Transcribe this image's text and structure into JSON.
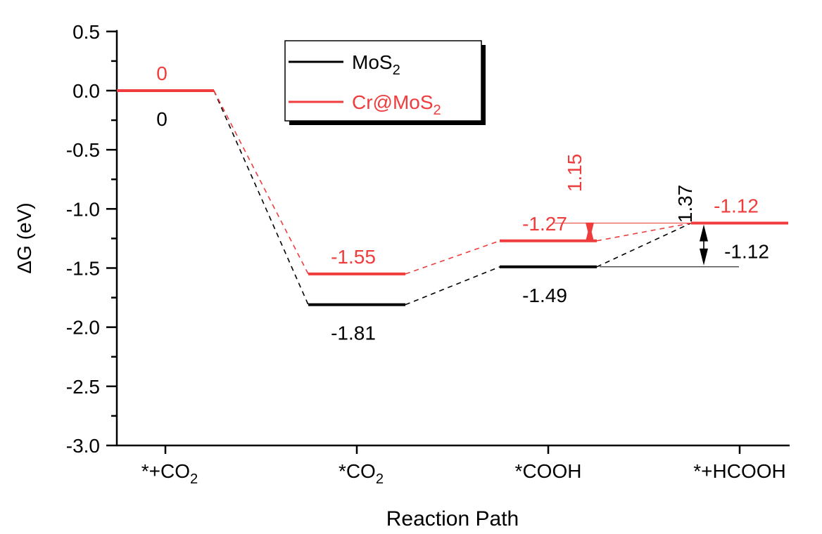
{
  "chart_data": {
    "type": "line",
    "title": "",
    "xlabel": "Reaction Path",
    "ylabel": "ΔG (eV)",
    "ylim": [
      -3.0,
      0.5
    ],
    "yticks": [
      "0.5",
      "0.0",
      "-0.5",
      "-1.0",
      "-1.5",
      "-2.0",
      "-2.5",
      "-3.0"
    ],
    "ytick_values": [
      0.5,
      0.0,
      -0.5,
      -1.0,
      -1.5,
      -2.0,
      -2.5,
      -3.0
    ],
    "categories": [
      {
        "text": "*+CO",
        "sub": "2"
      },
      {
        "text": "*CO",
        "sub": "2"
      },
      {
        "text": "*COOH",
        "sub": ""
      },
      {
        "text": "*+HCOOH",
        "sub": ""
      }
    ],
    "series": [
      {
        "name": "MoS",
        "name_sub": "2",
        "color": "#000000",
        "values": [
          0,
          -1.81,
          -1.49,
          -1.12
        ],
        "labels": [
          "0",
          "-1.81",
          "-1.49",
          "-1.12"
        ],
        "label_pos": "below"
      },
      {
        "name": "Cr@MoS",
        "name_sub": "2",
        "color": "#f03c3c",
        "values": [
          0,
          -1.55,
          -1.27,
          -1.12
        ],
        "labels": [
          "0",
          "-1.55",
          "-1.27",
          "-1.12"
        ],
        "label_pos": "above"
      }
    ],
    "annotations": [
      {
        "text": "1.15",
        "color": "#f03c3c",
        "from": -1.12,
        "to": -1.27
      },
      {
        "text": "1.37",
        "color": "#000000",
        "from": -1.12,
        "to": -1.49
      }
    ],
    "legend": "top-center",
    "grid": false
  }
}
